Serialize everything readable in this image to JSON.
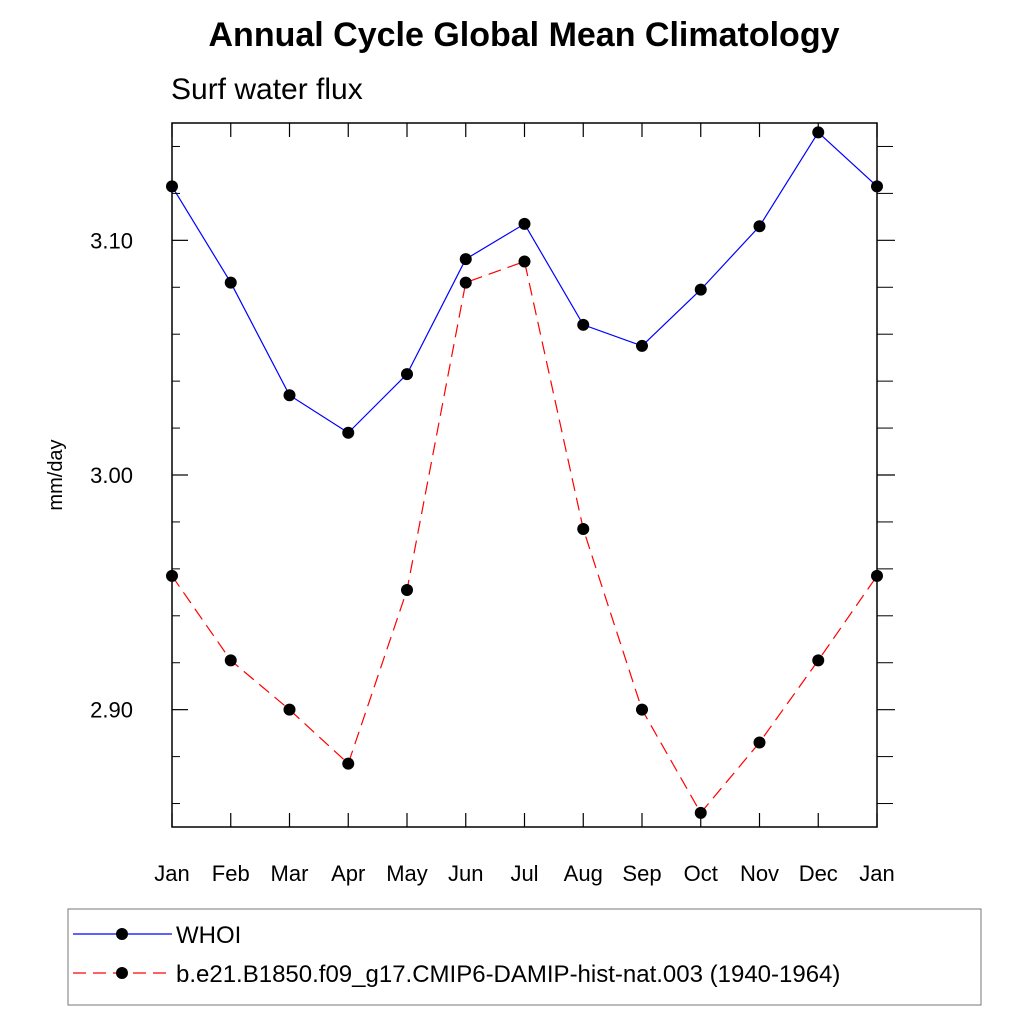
{
  "chart_data": {
    "type": "line",
    "title": "Annual Cycle Global Mean Climatology",
    "subtitle": "Surf water flux",
    "ylabel": "mm/day",
    "xlabel": "",
    "categories": [
      "Jan",
      "Feb",
      "Mar",
      "Apr",
      "May",
      "Jun",
      "Jul",
      "Aug",
      "Sep",
      "Oct",
      "Nov",
      "Dec",
      "Jan"
    ],
    "ylim": [
      2.85,
      3.15
    ],
    "yticks": [
      2.9,
      3.0,
      3.1
    ],
    "ytick_labels": [
      "2.90",
      "3.00",
      "3.10"
    ],
    "grid": false,
    "legend_position": "bottom",
    "series": [
      {
        "name": "WHOI",
        "color": "#0000ff",
        "style": "solid",
        "marker": "filled-circle",
        "values": [
          3.123,
          3.082,
          3.034,
          3.018,
          3.043,
          3.092,
          3.107,
          3.064,
          3.055,
          3.079,
          3.106,
          3.146,
          3.123
        ]
      },
      {
        "name": "b.e21.B1850.f09_g17.CMIP6-DAMIP-hist-nat.003 (1940-1964)",
        "color": "#ff0000",
        "style": "dashed",
        "marker": "filled-circle",
        "values": [
          2.957,
          2.921,
          2.9,
          2.877,
          2.951,
          3.082,
          3.091,
          2.977,
          2.9,
          2.856,
          2.886,
          2.921,
          2.957
        ]
      }
    ]
  }
}
